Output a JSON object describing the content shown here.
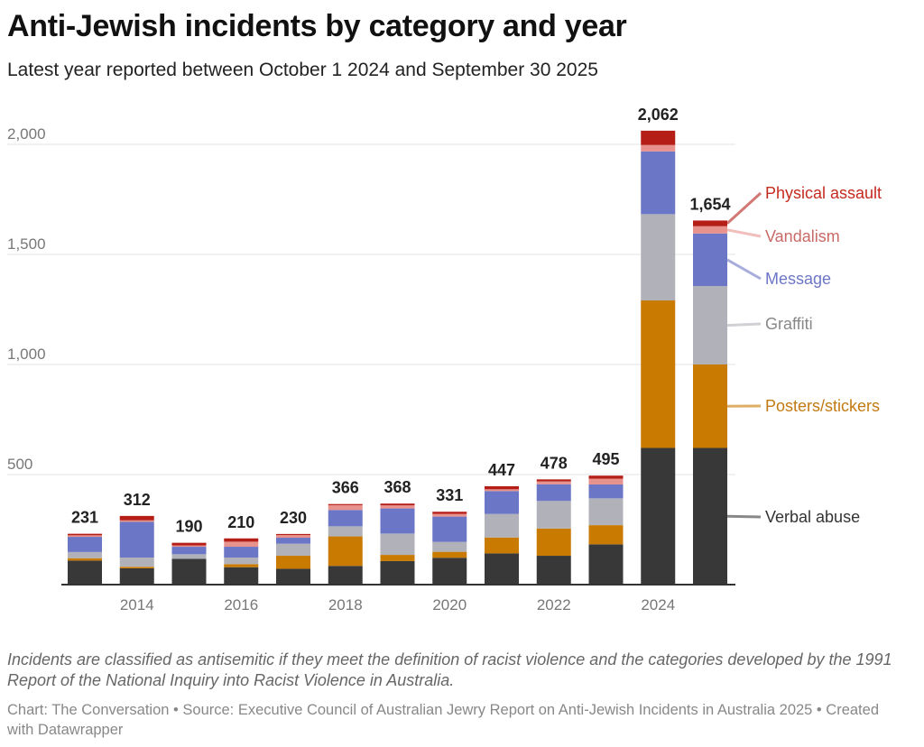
{
  "title": "Anti-Jewish incidents by category and year",
  "subtitle": "Latest year reported between October 1 2024 and September 30 2025",
  "notes": "Incidents are classified as antisemitic if they meet the definition of racist violence and the categories developed by the 1991 Report of the National Inquiry into Racist Violence in Australia.",
  "source": "Chart: The Conversation • Source: Executive Council of Australian Jewry Report on Anti-Jewish Incidents in Australia 2025 • Created with Datawrapper",
  "chart_data": {
    "type": "bar",
    "stacked": true,
    "categories": [
      "2013",
      "2014",
      "2015",
      "2016",
      "2017",
      "2018",
      "2019",
      "2020",
      "2021",
      "2022",
      "2023",
      "2024",
      "2025"
    ],
    "x_tick_labels": [
      "2014",
      "2016",
      "2018",
      "2020",
      "2022",
      "2024"
    ],
    "y_ticks": [
      500,
      1000,
      1500,
      2000
    ],
    "y_tick_labels": [
      "500",
      "1,000",
      "1,500",
      "2,000"
    ],
    "ylim": [
      0,
      2200
    ],
    "grid": true,
    "legend_placement": "right (direct labels)",
    "totals": [
      "231",
      "312",
      "190",
      "210",
      "230",
      "366",
      "368",
      "331",
      "447",
      "478",
      "495",
      "2,062",
      "1,654"
    ],
    "series": [
      {
        "name": "Verbal abuse",
        "color": "#383838",
        "label_color": "#333333",
        "values": [
          109,
          74,
          117,
          79,
          72,
          85,
          107,
          122,
          142,
          131,
          183,
          621,
          621
        ]
      },
      {
        "name": "Posters/stickers",
        "color": "#c97a00",
        "label_color": "#c27a11",
        "values": [
          11,
          7,
          0,
          14,
          59,
          134,
          28,
          27,
          72,
          124,
          87,
          670,
          379
        ]
      },
      {
        "name": "Graffiti",
        "color": "#b0b1b9",
        "label_color": "#888888",
        "values": [
          28,
          42,
          21,
          30,
          55,
          46,
          97,
          45,
          107,
          125,
          122,
          392,
          356
        ]
      },
      {
        "name": "Message",
        "color": "#6c76c6",
        "label_color": "#6c76c6",
        "values": [
          69,
          162,
          34,
          49,
          27,
          74,
          114,
          115,
          104,
          76,
          63,
          285,
          239
        ]
      },
      {
        "name": "Vandalism",
        "color": "#e8928e",
        "label_color": "#c86a66",
        "values": [
          7,
          7,
          6,
          23,
          12,
          22,
          14,
          12,
          8,
          13,
          26,
          29,
          33
        ]
      },
      {
        "name": "Physical assault",
        "color": "#b51e17",
        "label_color": "#c5291f",
        "values": [
          7,
          20,
          12,
          15,
          5,
          5,
          8,
          10,
          14,
          9,
          14,
          65,
          26
        ]
      }
    ]
  }
}
